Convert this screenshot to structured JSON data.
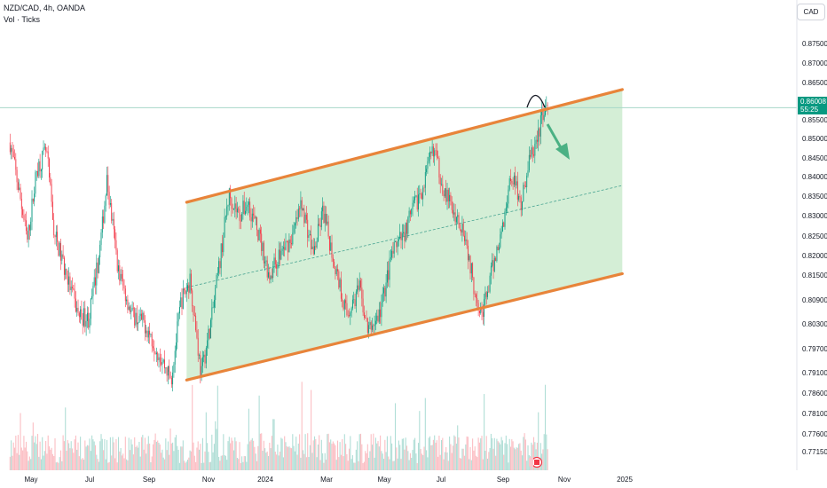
{
  "header": {
    "title": "NZD/CAD, 4h, OANDA",
    "volume_label": "Vol · Ticks",
    "currency_button": "CAD"
  },
  "last_price": {
    "value": "0.86008",
    "countdown": "55:25"
  },
  "colors": {
    "channel_line": "#e8843a",
    "channel_fill": "#cdebcf",
    "up_candle": "#089981",
    "down_candle": "#f23645",
    "midline": "#4aa593",
    "arrow": "#4bb184",
    "price_line": "#a7d7c8"
  },
  "chart_data": {
    "type": "candlestick",
    "symbol": "NZD/CAD",
    "interval": "4h",
    "source": "OANDA",
    "y_ticks": [
      "0.87500",
      "0.87000",
      "0.86500",
      "0.86000",
      "0.85500",
      "0.85000",
      "0.84500",
      "0.84000",
      "0.83500",
      "0.83000",
      "0.82500",
      "0.82000",
      "0.81500",
      "0.80900",
      "0.80300",
      "0.79700",
      "0.79100",
      "0.78600",
      "0.78100",
      "0.77600",
      "0.77150"
    ],
    "x_ticks": [
      "May",
      "Jul",
      "Sep",
      "Nov",
      "2024",
      "Mar",
      "May",
      "Jul",
      "Sep",
      "Nov",
      "2025"
    ],
    "price_path": [
      [
        "2023-04-10",
        0.852
      ],
      [
        "2023-04-20",
        0.84
      ],
      [
        "2023-04-28",
        0.829
      ],
      [
        "2023-05-08",
        0.846
      ],
      [
        "2023-05-18",
        0.85
      ],
      [
        "2023-05-26",
        0.831
      ],
      [
        "2023-06-08",
        0.821
      ],
      [
        "2023-06-20",
        0.812
      ],
      [
        "2023-07-01",
        0.811
      ],
      [
        "2023-07-12",
        0.826
      ],
      [
        "2023-07-20",
        0.843
      ],
      [
        "2023-08-01",
        0.822
      ],
      [
        "2023-08-15",
        0.812
      ],
      [
        "2023-08-28",
        0.81
      ],
      [
        "2023-09-10",
        0.804
      ],
      [
        "2023-09-25",
        0.797
      ],
      [
        "2023-10-05",
        0.815
      ],
      [
        "2023-10-15",
        0.82
      ],
      [
        "2023-10-26",
        0.798
      ],
      [
        "2023-11-06",
        0.811
      ],
      [
        "2023-11-15",
        0.825
      ],
      [
        "2023-11-24",
        0.84
      ],
      [
        "2023-12-05",
        0.835
      ],
      [
        "2023-12-14",
        0.838
      ],
      [
        "2023-12-26",
        0.83
      ],
      [
        "2024-01-05",
        0.821
      ],
      [
        "2024-01-16",
        0.826
      ],
      [
        "2024-01-29",
        0.83
      ],
      [
        "2024-02-08",
        0.838
      ],
      [
        "2024-02-20",
        0.826
      ],
      [
        "2024-03-01",
        0.836
      ],
      [
        "2024-03-13",
        0.824
      ],
      [
        "2024-03-26",
        0.812
      ],
      [
        "2024-04-08",
        0.818
      ],
      [
        "2024-04-17",
        0.808
      ],
      [
        "2024-04-29",
        0.812
      ],
      [
        "2024-05-12",
        0.826
      ],
      [
        "2024-05-23",
        0.83
      ],
      [
        "2024-06-04",
        0.837
      ],
      [
        "2024-06-14",
        0.842
      ],
      [
        "2024-06-24",
        0.851
      ],
      [
        "2024-07-05",
        0.841
      ],
      [
        "2024-07-15",
        0.836
      ],
      [
        "2024-07-26",
        0.832
      ],
      [
        "2024-08-05",
        0.819
      ],
      [
        "2024-08-14",
        0.812
      ],
      [
        "2024-08-26",
        0.824
      ],
      [
        "2024-09-04",
        0.832
      ],
      [
        "2024-09-13",
        0.845
      ],
      [
        "2024-09-24",
        0.838
      ],
      [
        "2024-10-02",
        0.848
      ],
      [
        "2024-10-10",
        0.852
      ],
      [
        "2024-10-17",
        0.86
      ],
      [
        "2024-10-22",
        0.859
      ]
    ],
    "channel": {
      "upper": [
        [
          "2023-10-11",
          0.8381
        ],
        [
          "2025-01-07",
          0.8643
        ]
      ],
      "lower": [
        [
          "2023-10-11",
          0.7968
        ],
        [
          "2025-01-07",
          0.8215
        ]
      ],
      "midline": [
        [
          "2023-10-11",
          0.8183
        ],
        [
          "2025-01-07",
          0.842
        ]
      ]
    },
    "last_price": 0.86008
  }
}
